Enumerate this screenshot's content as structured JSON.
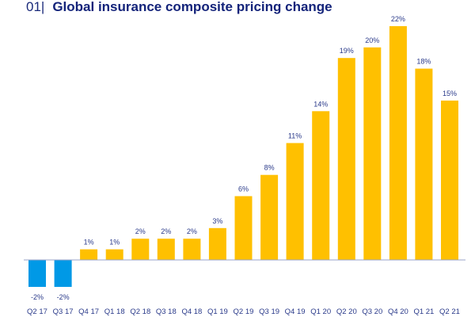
{
  "header": {
    "figure_number": "01|",
    "title": "Global insurance composite pricing change"
  },
  "colors": {
    "positive": "#FFC000",
    "negative": "#0099E6",
    "axis": "#9aa3c8",
    "text": "#2a3a8a",
    "title": "#13237a"
  },
  "chart_data": {
    "type": "bar",
    "title": "Global insurance composite pricing change",
    "xlabel": "",
    "ylabel": "",
    "categories": [
      "Q2 17",
      "Q3 17",
      "Q4 17",
      "Q1 18",
      "Q2 18",
      "Q3 18",
      "Q4 18",
      "Q1 19",
      "Q2 19",
      "Q3 19",
      "Q4 19",
      "Q1 20",
      "Q2 20",
      "Q3 20",
      "Q4 20",
      "Q1 21",
      "Q2 21"
    ],
    "values": [
      -2,
      -2,
      1,
      1,
      2,
      2,
      2,
      3,
      6,
      8,
      11,
      14,
      19,
      20,
      22,
      18,
      15
    ],
    "value_labels": [
      "-2%",
      "-2%",
      "1%",
      "1%",
      "2%",
      "2%",
      "2%",
      "3%",
      "6%",
      "8%",
      "11%",
      "14%",
      "19%",
      "20%",
      "22%",
      "18%",
      "15%"
    ],
    "value_format": "percent",
    "ylim": [
      -2.5,
      22.5
    ],
    "grid": false,
    "legend": "none"
  }
}
